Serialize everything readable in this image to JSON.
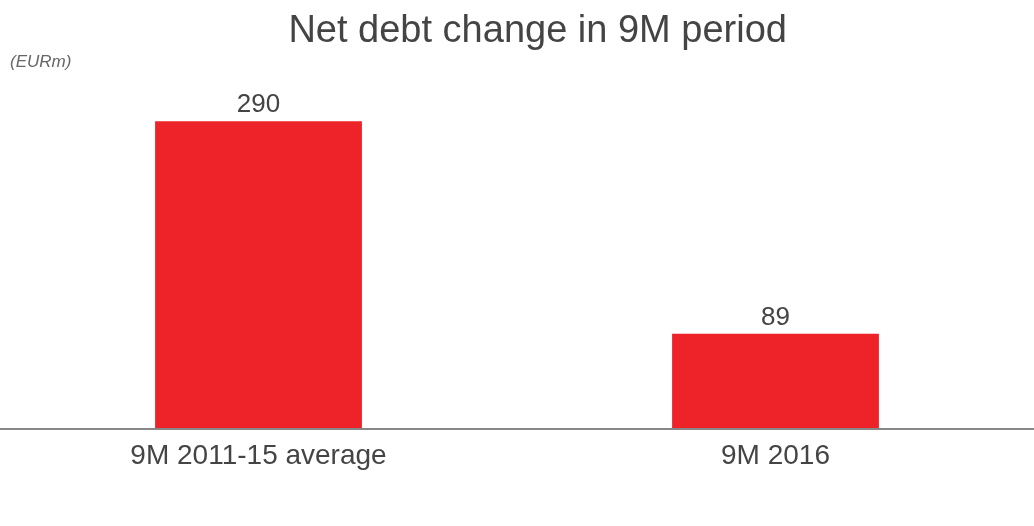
{
  "chart_data": {
    "type": "bar",
    "title": "Net debt change in 9M period",
    "annotations": [
      "(EURm)"
    ],
    "categories": [
      "9M 2011-15 average",
      "9M 2016"
    ],
    "values": [
      290,
      89
    ],
    "color": "#ee2229",
    "data_labels": true
  }
}
